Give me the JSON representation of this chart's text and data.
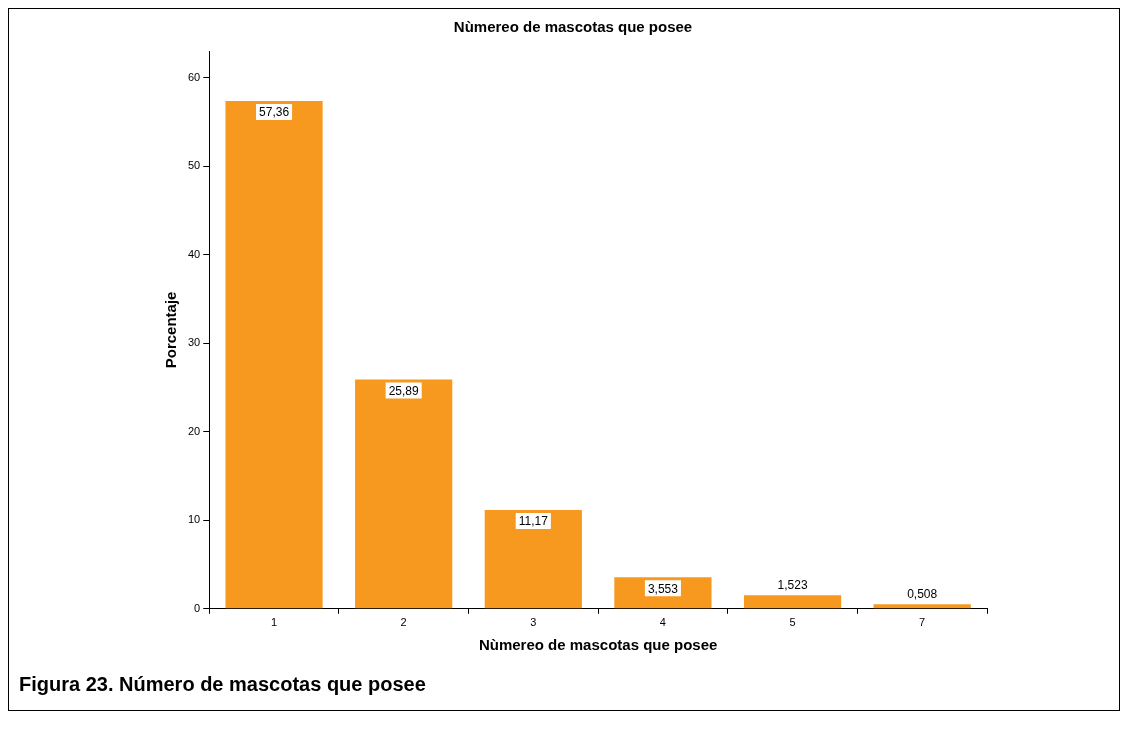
{
  "chart_data": {
    "type": "bar",
    "title": "Nùmereo de mascotas que posee",
    "xlabel": "Nùmereo de mascotas que posee",
    "ylabel": "Porcentaje",
    "categories": [
      "1",
      "2",
      "3",
      "4",
      "5",
      "7"
    ],
    "values": [
      57.36,
      25.89,
      11.17,
      3.553,
      1.523,
      0.508
    ],
    "value_labels": [
      "57,36",
      "25,89",
      "11,17",
      "3,553",
      "1,523",
      "0,508"
    ],
    "color": "#f7991e",
    "ylim": [
      0,
      63
    ],
    "yticks": [
      0,
      10,
      20,
      30,
      40,
      50,
      60
    ],
    "grid": false,
    "legend": false,
    "annotations": [
      "Figura 23.  Número de mascotas que posee"
    ]
  }
}
